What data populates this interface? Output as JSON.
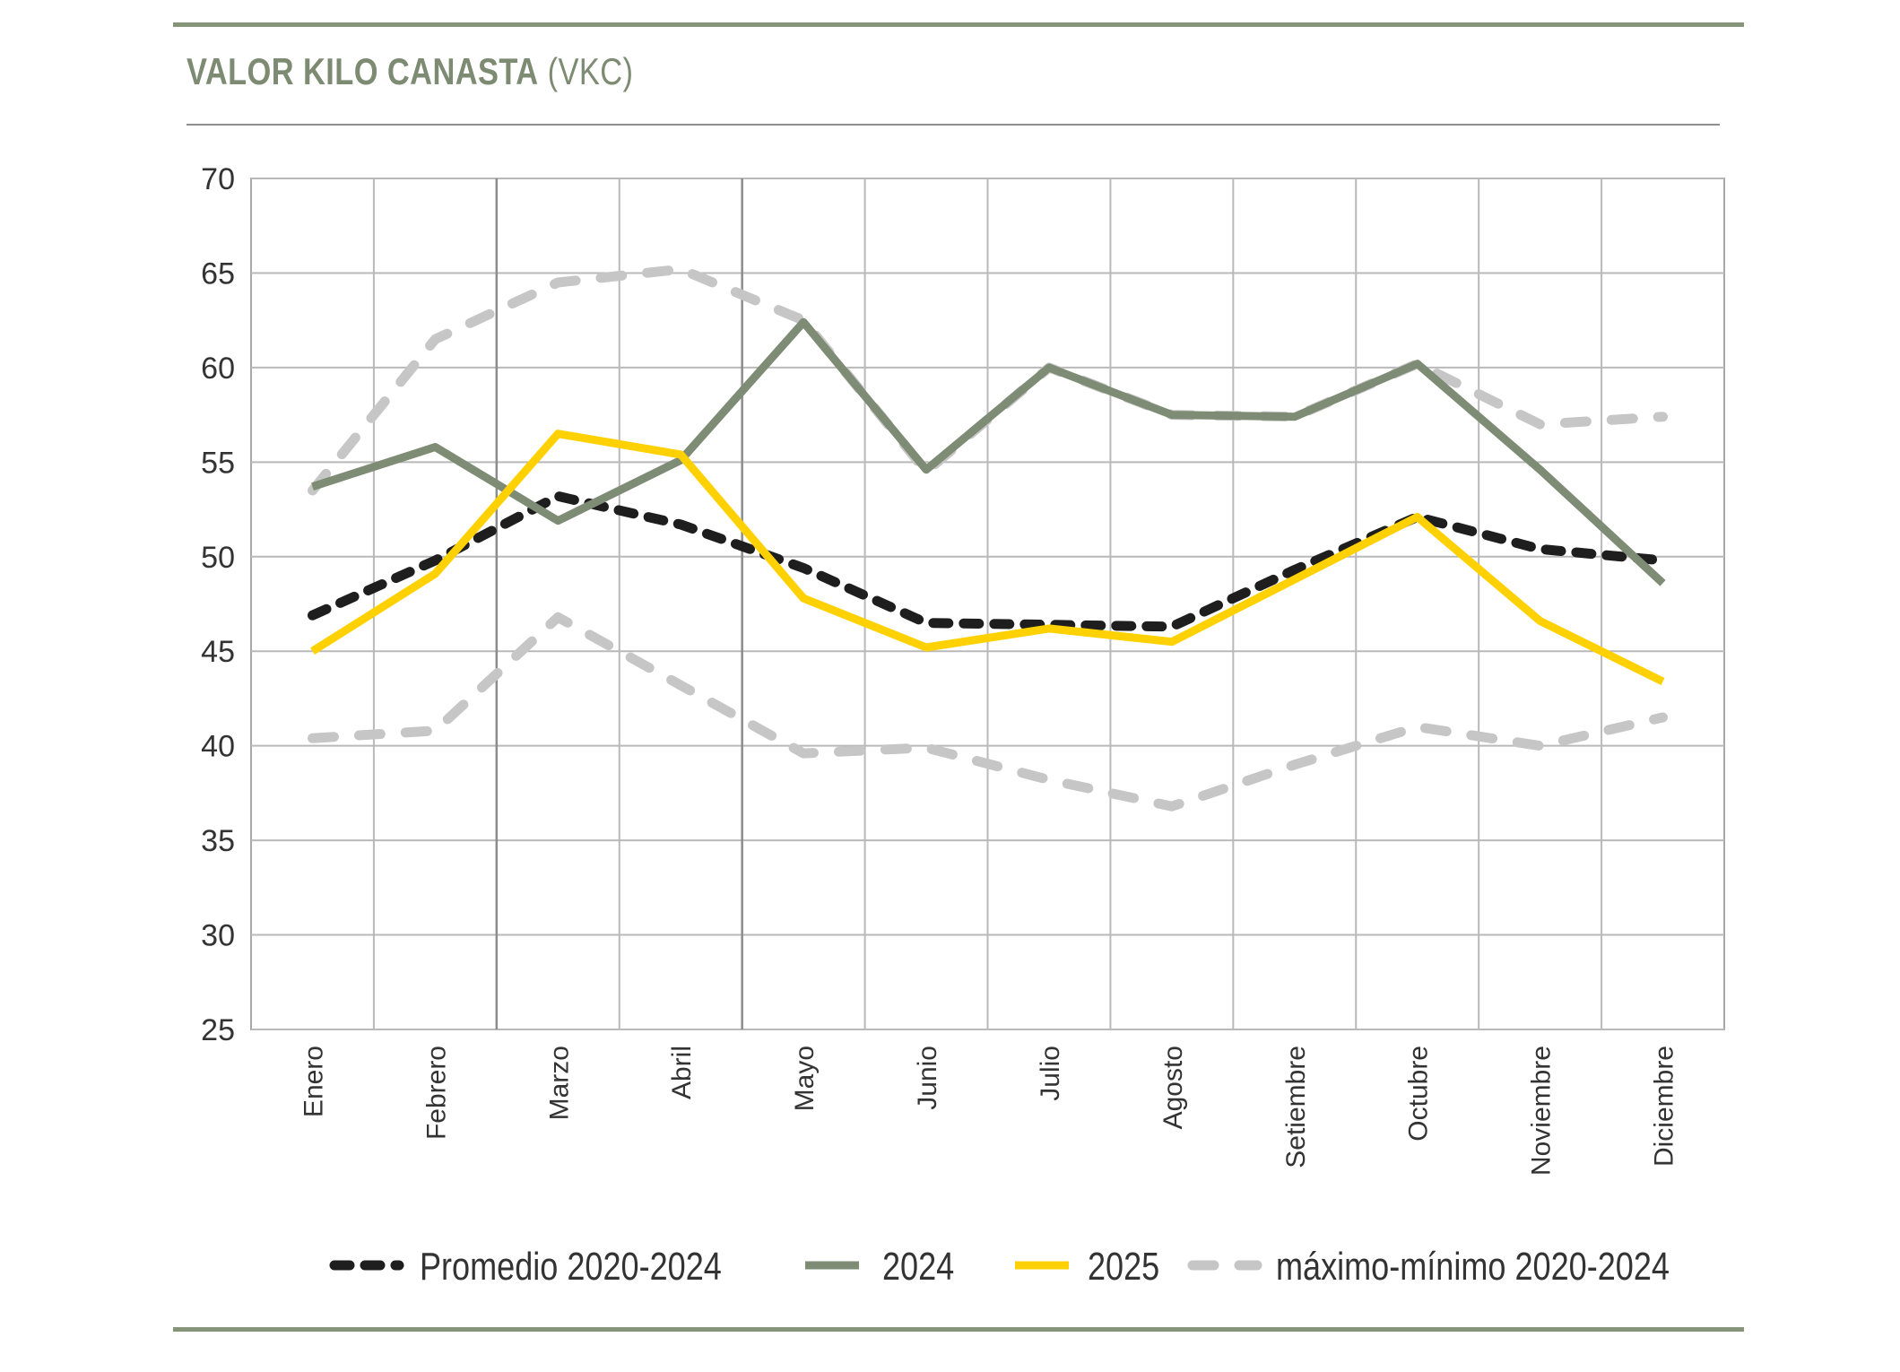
{
  "header": {
    "title_main": "VALOR KILO CANASTA",
    "title_suffix": "(VKC)"
  },
  "colors": {
    "rule": "#86957a",
    "grid": "#b9b9b9",
    "promedio": "#1e1e1e",
    "y2024": "#7e8b75",
    "y2025": "#ffd100",
    "maxmin": "#c6c6c6"
  },
  "chart_data": {
    "type": "line",
    "categories": [
      "Enero",
      "Febrero",
      "Marzo",
      "Abril",
      "Mayo",
      "Junio",
      "Julio",
      "Agosto",
      "Setiembre",
      "Octubre",
      "Noviembre",
      "Diciembre"
    ],
    "ylim": [
      25,
      70
    ],
    "yticks": [
      25,
      30,
      35,
      40,
      45,
      50,
      55,
      60,
      65,
      70
    ],
    "grid": true,
    "legend_position": "bottom",
    "series": [
      {
        "name": "máximo-mínimo 2020-2024",
        "key": "maxmin",
        "style": "dashed",
        "values": [
          53.5,
          61.5,
          64.5,
          65.2,
          62.5,
          54.5,
          60.0,
          57.5,
          57.4,
          60.2,
          57.0,
          57.4
        ]
      },
      {
        "name": "",
        "key": "maxmin",
        "style": "dashed",
        "values": [
          40.4,
          40.8,
          46.8,
          43.2,
          39.6,
          39.9,
          38.2,
          36.8,
          39.0,
          41.0,
          40.0,
          41.5
        ]
      },
      {
        "name": "Promedio 2020-2024",
        "key": "promedio",
        "style": "dotted",
        "values": [
          46.9,
          49.8,
          53.2,
          51.7,
          49.4,
          46.5,
          46.4,
          46.3,
          49.3,
          52.1,
          50.4,
          49.8
        ]
      },
      {
        "name": "2024",
        "key": "y2024",
        "style": "solid",
        "values": [
          53.7,
          55.8,
          51.9,
          55.1,
          62.4,
          54.6,
          60.0,
          57.5,
          57.4,
          60.2,
          54.6,
          48.6
        ]
      },
      {
        "name": "2025",
        "key": "y2025",
        "style": "solid",
        "values": [
          45.0,
          49.1,
          56.5,
          55.4,
          47.8,
          45.2,
          46.2,
          45.5,
          48.8,
          52.1,
          46.6,
          43.4
        ]
      }
    ],
    "legend": [
      {
        "label": "Promedio 2020-2024",
        "key": "promedio",
        "style": "dotted"
      },
      {
        "label": "2024",
        "key": "y2024",
        "style": "solid"
      },
      {
        "label": "2025",
        "key": "y2025",
        "style": "solid"
      },
      {
        "label": "máximo-mínimo 2020-2024",
        "key": "maxmin",
        "style": "dashed"
      }
    ]
  }
}
